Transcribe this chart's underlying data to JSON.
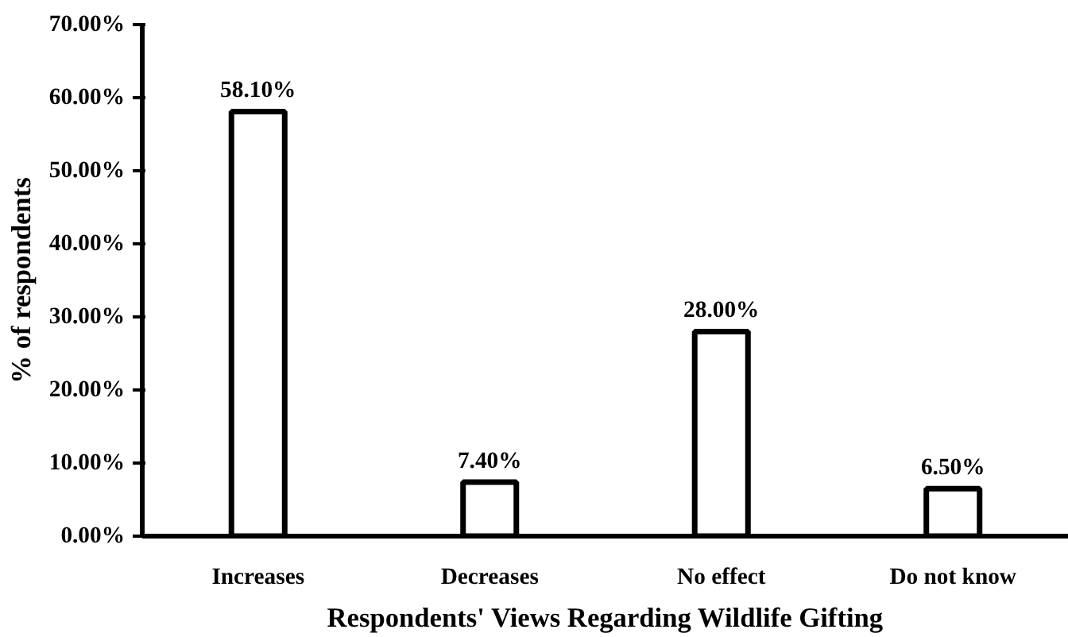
{
  "chart_data": {
    "type": "bar",
    "xlabel": "Respondents' Views Regarding Wildlife Gifting",
    "ylabel": "% of respondents",
    "categories": [
      "Increases",
      "Decreases",
      "No effect",
      "Do not know"
    ],
    "values": [
      58.1,
      7.4,
      28.0,
      6.5
    ],
    "value_labels": [
      "58.10%",
      "7.40%",
      "28.00%",
      "6.50%"
    ],
    "color": "#ffffff",
    "ylim": [
      0,
      70
    ],
    "yticks": [
      {
        "value": 0,
        "label": "0.00%"
      },
      {
        "value": 10,
        "label": "10.00%"
      },
      {
        "value": 20,
        "label": "20.00%"
      },
      {
        "value": 30,
        "label": "30.00%"
      },
      {
        "value": 40,
        "label": "40.00%"
      },
      {
        "value": 50,
        "label": "50.00%"
      },
      {
        "value": 60,
        "label": "60.00%"
      },
      {
        "value": 70,
        "label": "70.00%"
      }
    ],
    "grid": false
  }
}
